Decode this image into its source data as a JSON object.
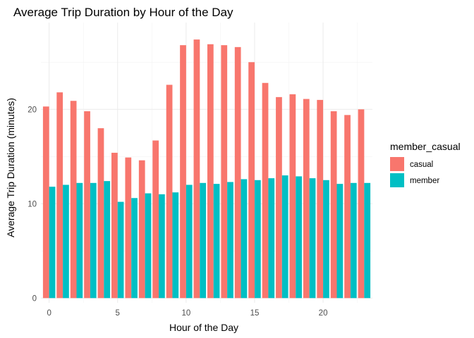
{
  "chart_data": {
    "type": "bar",
    "title": "Average Trip Duration by Hour of the Day",
    "xlabel": "Hour of the Day",
    "ylabel": "Average Trip Duration (minutes)",
    "x": [
      0,
      1,
      2,
      3,
      4,
      5,
      6,
      7,
      8,
      9,
      10,
      11,
      12,
      13,
      14,
      15,
      16,
      17,
      18,
      19,
      20,
      21,
      22,
      23
    ],
    "xticks": [
      0,
      5,
      10,
      15,
      20
    ],
    "yticks": [
      0,
      10,
      20
    ],
    "xlim": [
      -0.6,
      23.6
    ],
    "ylim": [
      -0.5,
      29.2
    ],
    "grid": true,
    "legend": {
      "title": "member_casual",
      "position": "right"
    },
    "series": [
      {
        "name": "casual",
        "color": "#F8766D",
        "values": [
          20.3,
          21.8,
          20.9,
          19.8,
          18.0,
          15.4,
          14.9,
          14.6,
          16.7,
          22.6,
          26.8,
          27.4,
          26.9,
          26.8,
          26.6,
          25.0,
          22.8,
          21.3,
          21.6,
          21.1,
          21.0,
          19.8,
          19.4,
          20.0
        ]
      },
      {
        "name": "member",
        "color": "#00BFC4",
        "values": [
          11.8,
          12.0,
          12.2,
          12.2,
          12.4,
          10.2,
          10.6,
          11.1,
          11.0,
          11.2,
          12.0,
          12.2,
          12.1,
          12.3,
          12.6,
          12.5,
          12.7,
          13.0,
          12.9,
          12.7,
          12.5,
          12.1,
          12.2,
          12.2
        ]
      }
    ]
  }
}
